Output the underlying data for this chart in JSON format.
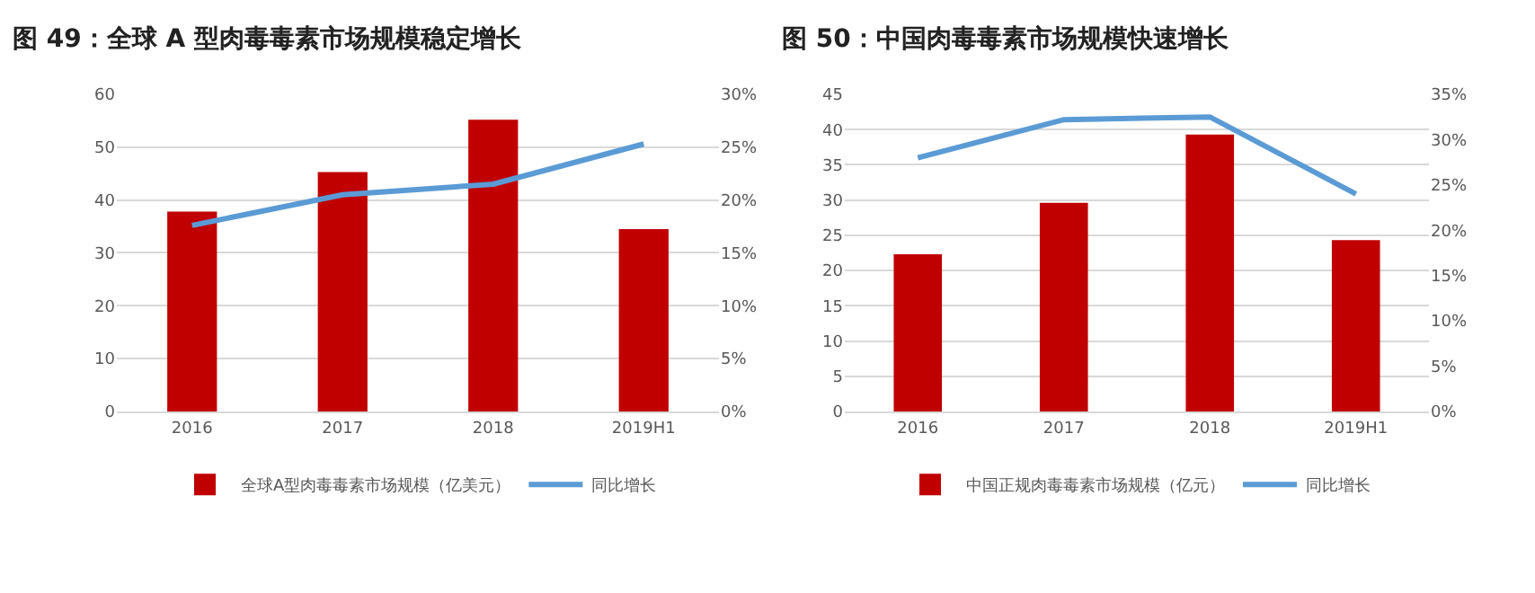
{
  "chart_data": [
    {
      "type": "bar",
      "title": "图 49：全球 A 型肉毒毒素市场规模稳定增长",
      "categories": [
        "2016",
        "2017",
        "2018",
        "2019H1"
      ],
      "series": [
        {
          "name": "全球A型肉毒毒素市场规模（亿美元）",
          "color": "#c00000",
          "values": [
            37.8,
            45.3,
            55.2,
            34.5
          ]
        },
        {
          "name": "同比增长",
          "type": "line",
          "axis": "y2",
          "color": "#5b9bd5",
          "values": [
            17.6,
            20.5,
            21.5,
            25.3
          ]
        }
      ],
      "ylim": [
        0,
        60
      ],
      "yticks": [
        0,
        10,
        20,
        30,
        40,
        50,
        60
      ],
      "y2lim": [
        0,
        30
      ],
      "y2ticks": [
        {
          "value": 0,
          "label": "0%"
        },
        {
          "value": 5,
          "label": "5%"
        },
        {
          "value": 10,
          "label": "10%"
        },
        {
          "value": 15,
          "label": "15%"
        },
        {
          "value": 20,
          "label": "20%"
        },
        {
          "value": 25,
          "label": "25%"
        },
        {
          "value": 30,
          "label": "30%"
        }
      ],
      "grid": "y",
      "legend": "bottom",
      "marker": "none",
      "line_style": "solid"
    },
    {
      "type": "bar",
      "title": "图 50：中国肉毒毒素市场规模快速增长",
      "categories": [
        "2016",
        "2017",
        "2018",
        "2019H1"
      ],
      "series": [
        {
          "name": "中国正规肉毒毒素市场规模（亿元）",
          "color": "#c00000",
          "values": [
            22.3,
            29.6,
            39.3,
            24.3
          ]
        },
        {
          "name": "同比增长",
          "type": "line",
          "axis": "y2",
          "color": "#5b9bd5",
          "values": [
            28.0,
            32.2,
            32.5,
            24.0
          ]
        }
      ],
      "ylim": [
        0,
        45
      ],
      "yticks": [
        0,
        5,
        10,
        15,
        20,
        25,
        30,
        35,
        40,
        45
      ],
      "y2lim": [
        0,
        35
      ],
      "y2ticks": [
        {
          "value": 0,
          "label": "0%"
        },
        {
          "value": 5,
          "label": "5%"
        },
        {
          "value": 10,
          "label": "10%"
        },
        {
          "value": 15,
          "label": "15%"
        },
        {
          "value": 20,
          "label": "20%"
        },
        {
          "value": 25,
          "label": "25%"
        },
        {
          "value": 30,
          "label": "30%"
        },
        {
          "value": 35,
          "label": "35%"
        }
      ],
      "grid": "y",
      "legend": "bottom",
      "marker": "none",
      "line_style": "solid"
    }
  ]
}
